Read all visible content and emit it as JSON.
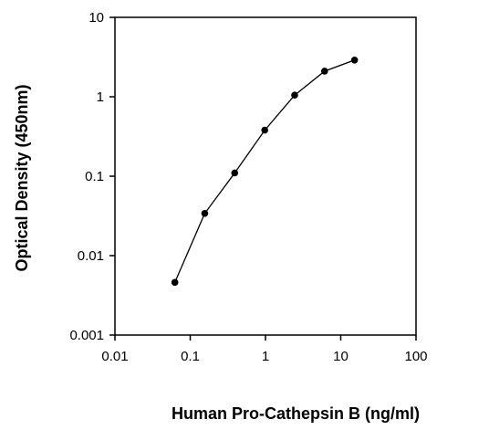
{
  "chart_data": {
    "type": "line",
    "title": "",
    "xlabel": "Human Pro-Cathepsin B (ng/ml)",
    "ylabel": "Optical Density (450nm)",
    "x_scale": "log",
    "y_scale": "log",
    "xlim": [
      0.01,
      100
    ],
    "ylim": [
      0.001,
      10
    ],
    "x_ticks": [
      "0.01",
      "0.1",
      "1",
      "10",
      "100"
    ],
    "y_ticks": [
      "0.001",
      "0.01",
      "0.1",
      "1",
      "10"
    ],
    "grid": false,
    "legend": "none",
    "series": [
      {
        "x": [
          0.0625,
          0.156,
          0.39,
          0.977,
          2.44,
          6.1,
          15.26
        ],
        "y": [
          0.0046,
          0.034,
          0.11,
          0.38,
          1.05,
          2.1,
          2.9
        ],
        "color": "#000000"
      }
    ]
  }
}
